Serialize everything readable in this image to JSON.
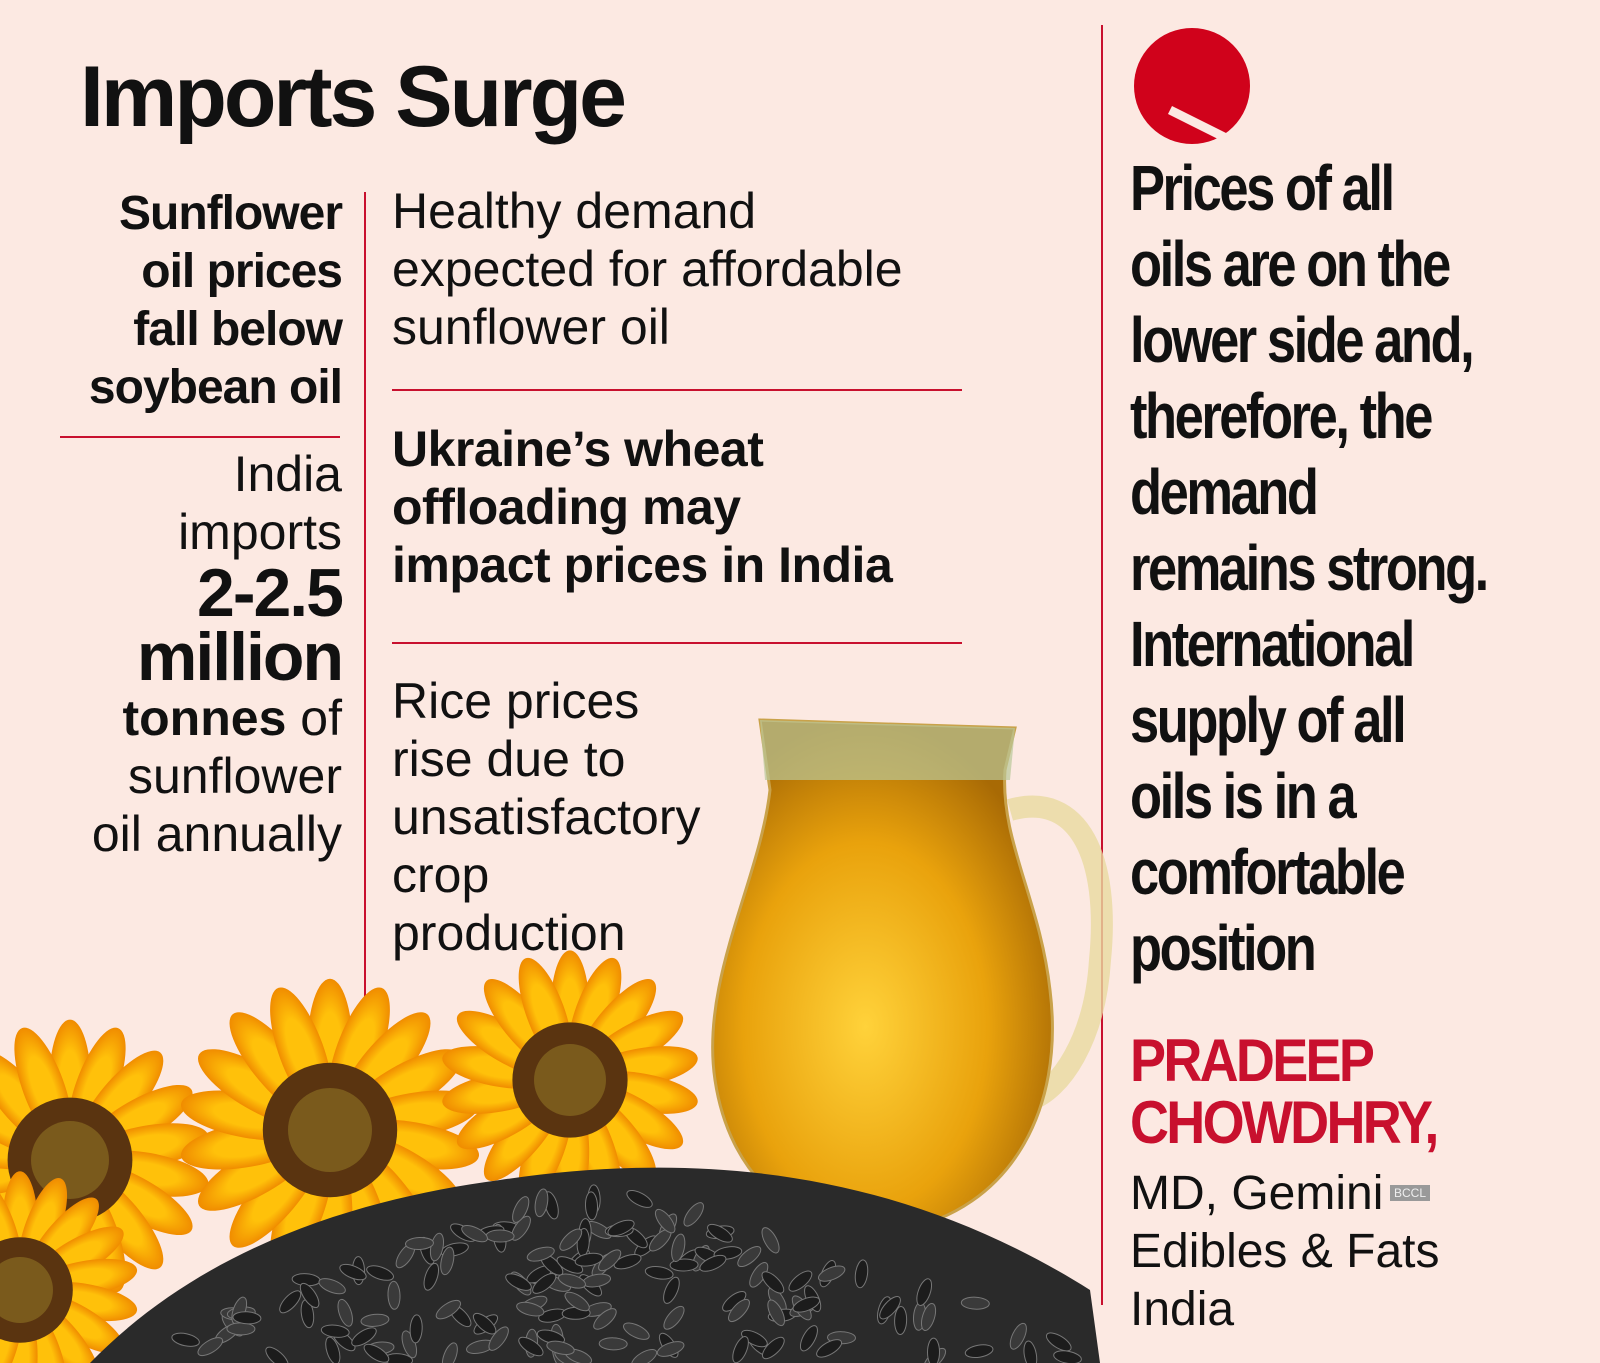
{
  "header": {
    "title": "Imports Surge"
  },
  "left_column": {
    "headline": [
      "Sunflower",
      "oil prices",
      "fall below",
      "soybean oil"
    ],
    "fact": [
      "India",
      "imports",
      "2-2.5",
      "million",
      "tonnes",
      "of",
      "sunflower",
      "oil annually"
    ]
  },
  "middle_column": {
    "items": [
      {
        "lines": [
          "Healthy demand",
          "expected for affordable",
          "sunflower oil"
        ]
      },
      {
        "lines": [
          "Ukraine’s wheat",
          "offloading may",
          "impact prices in India"
        ]
      },
      {
        "lines": [
          "Rice prices",
          "rise due to",
          "unsatisfactory",
          "crop",
          "production"
        ]
      }
    ]
  },
  "quote": {
    "lines": [
      "Prices of all",
      "oils are on the",
      "lower side and,",
      "therefore, the",
      "demand",
      "remains strong.",
      "International",
      "supply of all",
      "oils is in a",
      "comfortable",
      "position"
    ],
    "name": [
      "PRADEEP",
      "CHOWDHRY,"
    ],
    "role": [
      "MD, Gemini",
      "Edibles & Fats",
      "India"
    ]
  },
  "watermark": "BCCL"
}
